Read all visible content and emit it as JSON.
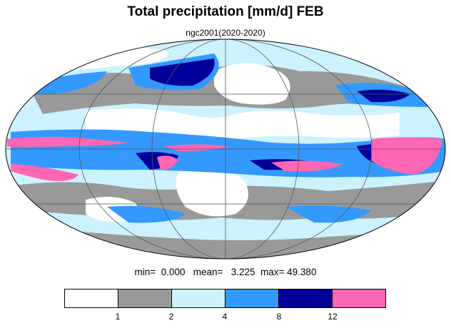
{
  "title": "Total precipitation [mm/d] FEB",
  "subtitle": "ngc2001(2020-2020)",
  "stats": {
    "min_label": "min=",
    "min_value": "0.000",
    "mean_label": "mean=",
    "mean_value": "3.225",
    "max_label": "max=",
    "max_value": "49.380"
  },
  "colorbar": {
    "colors": [
      "#ffffff",
      "#999999",
      "#ccf2ff",
      "#3399ff",
      "#000099",
      "#ff66b3"
    ],
    "tick_labels": [
      "1",
      "2",
      "4",
      "8",
      "12"
    ]
  },
  "map": {
    "projection": "mollweide",
    "graticule_lon_step": 60,
    "graticule_lat_step": 30
  }
}
